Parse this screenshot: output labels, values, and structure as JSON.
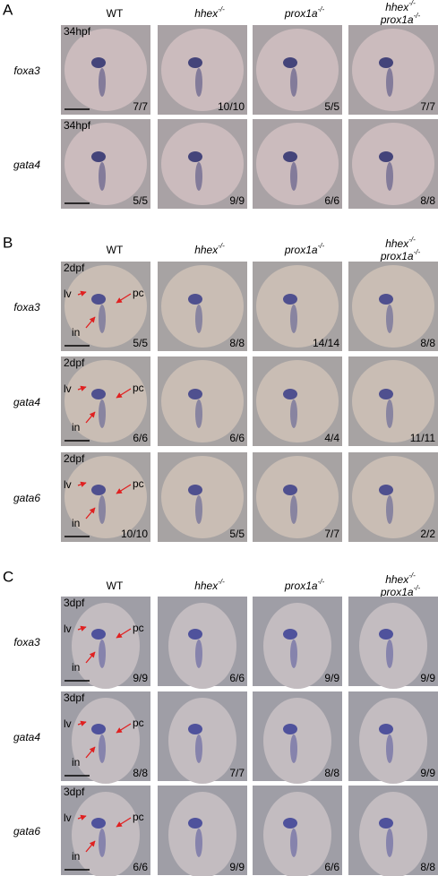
{
  "panels": [
    {
      "label": "A",
      "columns": [
        [
          {
            "text": "WT"
          }
        ],
        [
          {
            "text": "hhex",
            "sup": "-/-"
          }
        ],
        [
          {
            "text": "prox1a",
            "sup": "-/-"
          }
        ],
        [
          {
            "text": "hhex",
            "sup": "-/-"
          },
          {
            "text": "prox1a",
            "sup": "-/-"
          }
        ]
      ],
      "rows": [
        {
          "gene": "foxa3",
          "stage": "34hpf",
          "counts": [
            "7/7",
            "10/10",
            "5/5",
            "7/7"
          ]
        },
        {
          "gene": "gata4",
          "stage": "34hpf",
          "counts": [
            "5/5",
            "9/9",
            "6/6",
            "8/8"
          ]
        }
      ]
    },
    {
      "label": "B",
      "columns": [
        [
          {
            "text": "WT"
          }
        ],
        [
          {
            "text": "hhex",
            "sup": "-/-"
          }
        ],
        [
          {
            "text": "prox1a",
            "sup": "-/-"
          }
        ],
        [
          {
            "text": "hhex",
            "sup": "-/-"
          },
          {
            "text": "prox1a",
            "sup": "-/-"
          }
        ]
      ],
      "rows": [
        {
          "gene": "foxa3",
          "stage": "2dpf",
          "counts": [
            "5/5",
            "8/8",
            "14/14",
            "8/8"
          ],
          "annotations": [
            "lv",
            "pc",
            "in"
          ]
        },
        {
          "gene": "gata4",
          "stage": "2dpf",
          "counts": [
            "6/6",
            "6/6",
            "4/4",
            "11/11"
          ],
          "annotations": [
            "lv",
            "pc",
            "in"
          ]
        },
        {
          "gene": "gata6",
          "stage": "2dpf",
          "counts": [
            "10/10",
            "5/5",
            "7/7",
            "2/2"
          ],
          "annotations": [
            "lv",
            "pc",
            "in"
          ]
        }
      ]
    },
    {
      "label": "C",
      "columns": [
        [
          {
            "text": "WT"
          }
        ],
        [
          {
            "text": "hhex",
            "sup": "-/-"
          }
        ],
        [
          {
            "text": "prox1a",
            "sup": "-/-"
          }
        ],
        [
          {
            "text": "hhex",
            "sup": "-/-"
          },
          {
            "text": "prox1a",
            "sup": "-/-"
          }
        ]
      ],
      "rows": [
        {
          "gene": "foxa3",
          "stage": "3dpf",
          "counts": [
            "9/9",
            "6/6",
            "9/9",
            "9/9"
          ],
          "annotations": [
            "lv",
            "pc",
            "in"
          ]
        },
        {
          "gene": "gata4",
          "stage": "3dpf",
          "counts": [
            "8/8",
            "7/7",
            "8/8",
            "9/9"
          ],
          "annotations": [
            "lv",
            "pc",
            "in"
          ]
        },
        {
          "gene": "gata6",
          "stage": "3dpf",
          "counts": [
            "6/6",
            "9/9",
            "6/6",
            "8/8"
          ],
          "annotations": [
            "lv",
            "pc",
            "in"
          ]
        }
      ]
    }
  ]
}
